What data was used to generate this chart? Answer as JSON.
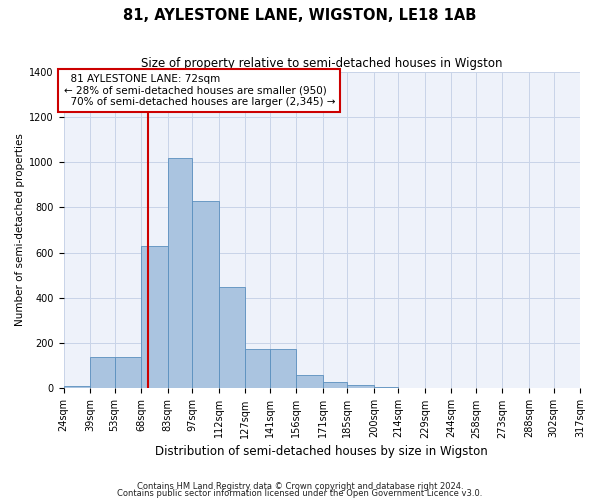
{
  "title": "81, AYLESTONE LANE, WIGSTON, LE18 1AB",
  "subtitle": "Size of property relative to semi-detached houses in Wigston",
  "xlabel": "Distribution of semi-detached houses by size in Wigston",
  "ylabel": "Number of semi-detached properties",
  "footnote1": "Contains HM Land Registry data © Crown copyright and database right 2024.",
  "footnote2": "Contains public sector information licensed under the Open Government Licence v3.0.",
  "bin_labels": [
    "24sqm",
    "39sqm",
    "53sqm",
    "68sqm",
    "83sqm",
    "97sqm",
    "112sqm",
    "127sqm",
    "141sqm",
    "156sqm",
    "171sqm",
    "185sqm",
    "200sqm",
    "214sqm",
    "229sqm",
    "244sqm",
    "258sqm",
    "273sqm",
    "288sqm",
    "302sqm",
    "317sqm"
  ],
  "bin_edges": [
    24,
    39,
    53,
    68,
    83,
    97,
    112,
    127,
    141,
    156,
    171,
    185,
    200,
    214,
    229,
    244,
    258,
    273,
    288,
    302,
    317
  ],
  "bar_values": [
    10,
    140,
    140,
    630,
    1020,
    830,
    450,
    175,
    175,
    60,
    30,
    15,
    5,
    2,
    1,
    1,
    0,
    0,
    0,
    0
  ],
  "bar_color": "#aac4e0",
  "bar_edge_color": "#5a8fbe",
  "property_size": 72,
  "pct_smaller": 28,
  "pct_smaller_n": 950,
  "pct_larger": 70,
  "pct_larger_n": 2345,
  "red_line_color": "#cc0000",
  "annotation_box_color": "#cc0000",
  "grid_color": "#c8d4e8",
  "bg_color": "#eef2fa",
  "ylim": [
    0,
    1400
  ],
  "yticks": [
    0,
    200,
    400,
    600,
    800,
    1000,
    1200,
    1400
  ],
  "title_fontsize": 10.5,
  "subtitle_fontsize": 8.5,
  "xlabel_fontsize": 8.5,
  "ylabel_fontsize": 7.5,
  "tick_fontsize": 7,
  "annotation_fontsize": 7.5,
  "footnote_fontsize": 6
}
